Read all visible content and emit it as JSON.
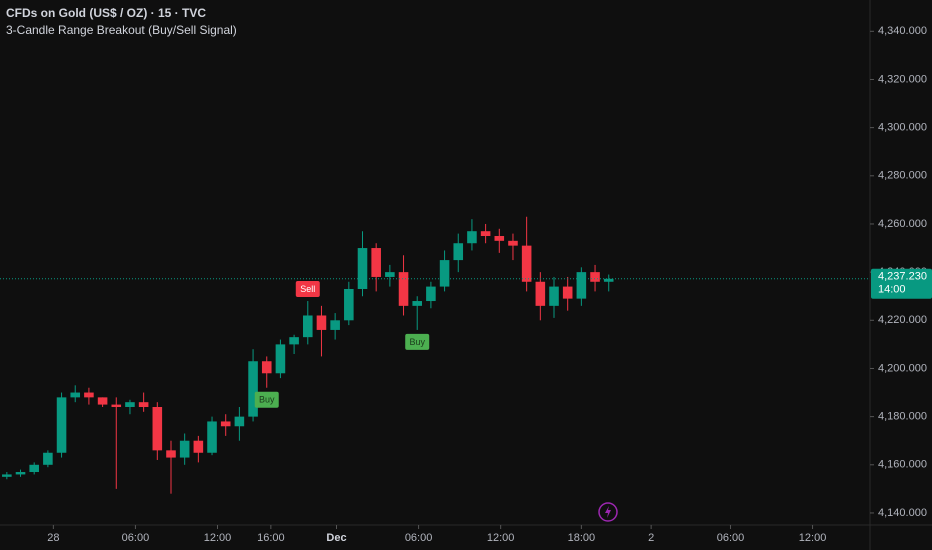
{
  "chart_data": {
    "type": "candlestick",
    "title": "CFDs on Gold (US$ / OZ) · 15 · TVC",
    "subtitle": "3-Candle Range Breakout (Buy/Sell Signal)",
    "open": [
      4155,
      4156,
      4157,
      4160,
      4165,
      4188,
      4190,
      4188,
      4185,
      4184,
      4186,
      4184,
      4166,
      4163,
      4170,
      4165,
      4178,
      4176,
      4180,
      4203,
      4198,
      4210,
      4213,
      4222,
      4216,
      4220,
      4233,
      4250,
      4238,
      4240,
      4226,
      4228,
      4234,
      4245,
      4252,
      4257,
      4255,
      4253,
      4251,
      4236,
      4226,
      4234,
      4229,
      4240,
      4236
    ],
    "high": [
      4157,
      4158,
      4161,
      4166,
      4190,
      4193,
      4192,
      4188,
      4188,
      4187,
      4190,
      4186,
      4170,
      4173,
      4172,
      4180,
      4181,
      4184,
      4208,
      4205,
      4212,
      4214,
      4228,
      4226,
      4223,
      4236,
      4257,
      4252,
      4243,
      4247,
      4230,
      4236,
      4249,
      4256,
      4262,
      4260,
      4258,
      4256,
      4263,
      4240,
      4238,
      4238,
      4242,
      4243,
      4239
    ],
    "low": [
      4154,
      4155,
      4156,
      4159,
      4163,
      4186,
      4185,
      4184,
      4150,
      4181,
      4182,
      4162,
      4148,
      4160,
      4161,
      4164,
      4172,
      4170,
      4178,
      4192,
      4196,
      4206,
      4210,
      4205,
      4212,
      4218,
      4230,
      4232,
      4234,
      4222,
      4216,
      4225,
      4232,
      4240,
      4249,
      4252,
      4248,
      4245,
      4232,
      4220,
      4221,
      4224,
      4226,
      4232,
      4232
    ],
    "close": [
      4156,
      4157,
      4160,
      4165,
      4188,
      4190,
      4188,
      4185,
      4184,
      4186,
      4184,
      4166,
      4163,
      4170,
      4165,
      4178,
      4176,
      4180,
      4203,
      4198,
      4210,
      4213,
      4222,
      4216,
      4220,
      4233,
      4250,
      4238,
      4240,
      4226,
      4228,
      4234,
      4245,
      4252,
      4257,
      4255,
      4253,
      4251,
      4236,
      4226,
      4234,
      4229,
      4240,
      4236,
      4237.23
    ],
    "up_color": "#089981",
    "down_color": "#f23645",
    "signals": [
      {
        "label": "Buy",
        "candle": 19,
        "color": "#4caf50"
      },
      {
        "label": "Sell",
        "candle": 22,
        "color": "#f23645"
      },
      {
        "label": "Buy",
        "candle": 30,
        "color": "#4caf50"
      }
    ],
    "xlim": [
      -0.5,
      63.1
    ],
    "xticks": [
      {
        "value": 3.4,
        "label": "28"
      },
      {
        "value": 9.4,
        "label": "06:00"
      },
      {
        "value": 15.4,
        "label": "12:00"
      },
      {
        "value": 19.3,
        "label": "16:00"
      },
      {
        "value": 24.1,
        "label": "Dec"
      },
      {
        "value": 30.1,
        "label": "06:00"
      },
      {
        "value": 36.1,
        "label": "12:00"
      },
      {
        "value": 42.0,
        "label": "18:00"
      },
      {
        "value": 47.1,
        "label": "2"
      },
      {
        "value": 52.9,
        "label": "06:00"
      },
      {
        "value": 58.9,
        "label": "12:00"
      }
    ],
    "ylim": [
      4135,
      4353
    ],
    "yticks": [
      {
        "value": 4140,
        "label": "4,140.000"
      },
      {
        "value": 4160,
        "label": "4,160.000"
      },
      {
        "value": 4180,
        "label": "4,180.000"
      },
      {
        "value": 4200,
        "label": "4,200.000"
      },
      {
        "value": 4220,
        "label": "4,220.000"
      },
      {
        "value": 4240,
        "label": "4,240.000"
      },
      {
        "value": 4260,
        "label": "4,260.000"
      },
      {
        "value": 4280,
        "label": "4,280.000"
      },
      {
        "value": 4300,
        "label": "4,300.000"
      },
      {
        "value": 4320,
        "label": "4,320.000"
      },
      {
        "value": 4340,
        "label": "4,340.000"
      }
    ],
    "last_price": {
      "value": 4237.23,
      "label": "4,237.230"
    },
    "countdown": "14:00"
  }
}
